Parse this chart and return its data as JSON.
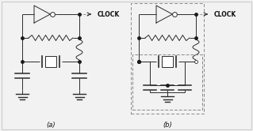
{
  "bg_color": "#f2f2f2",
  "line_color": "#2a2a2a",
  "dot_color": "#1a1a1a",
  "dashed_color": "#888888",
  "text_color": "#111111",
  "label_a": "(a)",
  "label_b": "(b)",
  "clock_label": "CLOCK",
  "fig_width": 3.19,
  "fig_height": 1.66,
  "dpi": 100,
  "border_color": "#cccccc"
}
